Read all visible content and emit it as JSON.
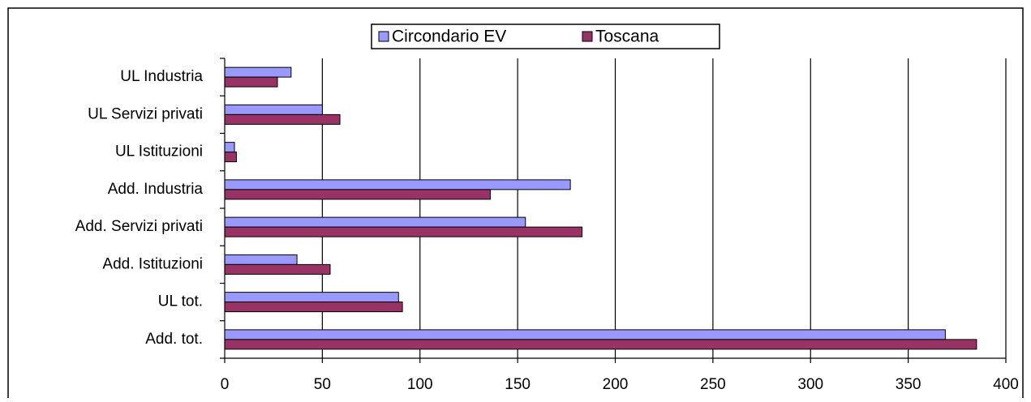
{
  "chart_data": {
    "type": "hbar",
    "categories": [
      "UL Industria",
      "UL Servizi privati",
      "UL Istituzioni",
      "Add. Industria",
      "Add. Servizi privati",
      "Add. Istituzioni",
      "UL tot.",
      "Add. tot."
    ],
    "series": [
      {
        "name": "Circondario EV",
        "color": "#9999ff",
        "values": [
          34,
          50,
          5,
          177,
          154,
          37,
          89,
          369
        ]
      },
      {
        "name": "Toscana",
        "color": "#993366",
        "values": [
          27,
          59,
          6,
          136,
          183,
          54,
          91,
          385
        ]
      }
    ],
    "xlim": [
      0,
      400
    ],
    "xticks": [
      0,
      50,
      100,
      150,
      200,
      250,
      300,
      350,
      400
    ],
    "grid": true,
    "legend": "top"
  }
}
